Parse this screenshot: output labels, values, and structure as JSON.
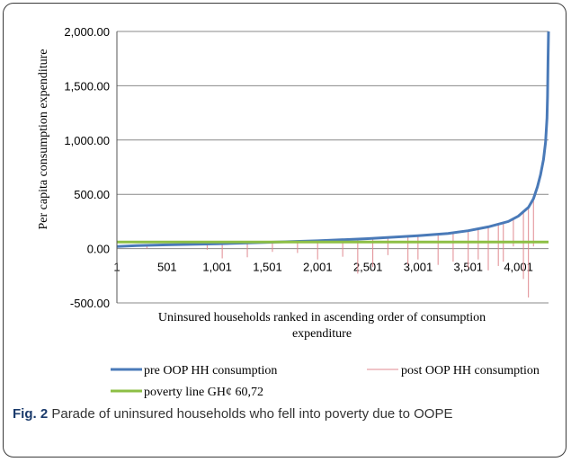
{
  "figure": {
    "label": "Fig. 2",
    "caption": "Parade of uninsured households who fell into poverty due to OOPE"
  },
  "colors": {
    "pre": "#4a7ab8",
    "post": "#e08a90",
    "poverty": "#8dbf45",
    "grid": "#888888",
    "axis": "#555555"
  },
  "chart_data": {
    "type": "line",
    "ylabel": "Per capita consumption expenditure",
    "xlabel_lines": [
      "Uninsured households ranked in ascending order of consumption",
      "expenditure"
    ],
    "ylim": [
      -500,
      2000
    ],
    "yticks": [
      -500,
      0,
      500,
      1000,
      1500,
      2000
    ],
    "ytick_labels": [
      "-500.00",
      "0.00",
      "500.00",
      "1,000.00",
      "1,500.00",
      "2,000.00"
    ],
    "xlim": [
      1,
      4300
    ],
    "xticks": [
      1,
      501,
      1001,
      1501,
      2001,
      2501,
      3001,
      3501,
      4001
    ],
    "xtick_labels": [
      "1",
      "501",
      "1,001",
      "1,501",
      "2,001",
      "2,501",
      "3,001",
      "3,501",
      "4,001"
    ],
    "grid": "horizontal",
    "legend_position": "bottom",
    "series": [
      {
        "name": "pre OOP HH consumption",
        "x": [
          1,
          200,
          500,
          1000,
          1500,
          2000,
          2500,
          3000,
          3300,
          3500,
          3700,
          3900,
          4000,
          4050,
          4100,
          4150,
          4190,
          4220,
          4250,
          4270,
          4285,
          4290,
          4295,
          4298,
          4300
        ],
        "y": [
          20,
          28,
          35,
          45,
          58,
          72,
          92,
          118,
          140,
          165,
          200,
          250,
          300,
          340,
          380,
          460,
          570,
          680,
          820,
          980,
          1200,
          1400,
          1700,
          1900,
          2000
        ]
      },
      {
        "name": "post OOP HH consumption",
        "x": [
          300,
          900,
          1050,
          1300,
          1550,
          1800,
          2000,
          2250,
          2400,
          2550,
          2700,
          2900,
          3000,
          3200,
          3350,
          3500,
          3600,
          3700,
          3800,
          3850,
          3950,
          4050,
          4100,
          4150
        ],
        "y": [
          0,
          -10,
          -90,
          -80,
          -30,
          -40,
          -100,
          -75,
          -230,
          -170,
          -60,
          -150,
          -100,
          -150,
          -120,
          -180,
          -100,
          -200,
          -160,
          -120,
          20,
          -280,
          -450,
          20
        ]
      },
      {
        "name": "poverty line GH¢ 60,72",
        "x": [
          1,
          4300
        ],
        "y": [
          60.72,
          60.72
        ]
      }
    ]
  }
}
